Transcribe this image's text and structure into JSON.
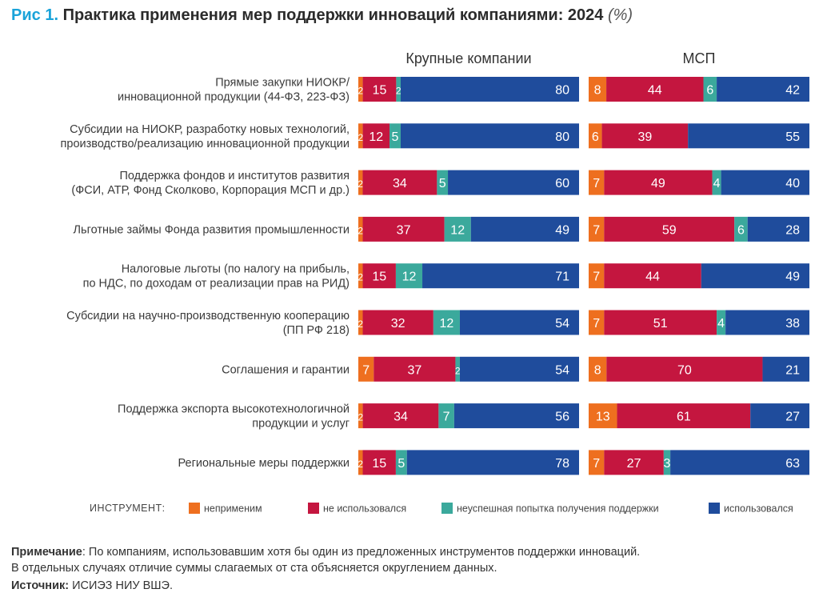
{
  "header": {
    "fig_label": "Рис 1.",
    "title": "Практика применения мер поддержки инноваций компаниями: 2024",
    "unit": "(%)"
  },
  "chart_data": {
    "type": "bar",
    "orientation": "horizontal",
    "stacked": true,
    "panels": [
      "Крупные компании",
      "МСП"
    ],
    "categories": [
      [
        "Прямые закупки НИОКР/",
        "инновационной продукции  (44-ФЗ, 223-ФЗ)"
      ],
      [
        "Субсидии на НИОКР, разработку новых технологий,",
        "производство/реализацию инновационной продукции"
      ],
      [
        "Поддержка фондов и институтов развития",
        "(ФСИ, АТР, Фонд Сколково, Корпорация МСП и др.)"
      ],
      [
        "Льготные займы Фонда развития промышленности"
      ],
      [
        "Налоговые льготы (по налогу на прибыль,",
        "по НДС, по доходам от реализации прав на РИД)"
      ],
      [
        "Субсидии на научно-производственную кооперацию",
        "(ПП РФ 218)"
      ],
      [
        "Соглашения и гарантии"
      ],
      [
        "Поддержка экспорта высокотехнологичной",
        "продукции и услуг"
      ],
      [
        "Региональные меры поддержки"
      ]
    ],
    "legend_title": "ИНСТРУМЕНТ:",
    "series": [
      {
        "name": "неприменим",
        "color": "#ee6f1f"
      },
      {
        "name": "не использовался",
        "color": "#c4163f"
      },
      {
        "name": "неуспешная попытка получения поддержки",
        "color": "#3ba99c"
      },
      {
        "name": "использовался",
        "color": "#1f4c9c"
      }
    ],
    "values": {
      "Крупные компании": [
        [
          2,
          15,
          2,
          80
        ],
        [
          2,
          12,
          5,
          80
        ],
        [
          2,
          34,
          5,
          60
        ],
        [
          2,
          37,
          12,
          49
        ],
        [
          2,
          15,
          12,
          71
        ],
        [
          2,
          32,
          12,
          54
        ],
        [
          7,
          37,
          2,
          54
        ],
        [
          2,
          34,
          7,
          56
        ],
        [
          2,
          15,
          5,
          78
        ]
      ],
      "МСП": [
        [
          8,
          44,
          6,
          42
        ],
        [
          6,
          39,
          0,
          55
        ],
        [
          7,
          49,
          4,
          40
        ],
        [
          7,
          59,
          6,
          28
        ],
        [
          7,
          44,
          0,
          49
        ],
        [
          7,
          51,
          4,
          38
        ],
        [
          8,
          70,
          0,
          21
        ],
        [
          13,
          61,
          0,
          27
        ],
        [
          7,
          27,
          3,
          63
        ]
      ]
    },
    "legend_position": "bottom"
  },
  "notes": {
    "note_label": "Примечание",
    "note_line1": ": По компаниям, использовавшим хотя бы один из предложенных инструментов поддержки инноваций.",
    "note_line2": "В отдельных случаях отличие суммы слагаемых от ста объясняется округлением данных.",
    "source_label": "Источник:",
    "source_text": " ИСИЭЗ НИУ ВШЭ."
  }
}
